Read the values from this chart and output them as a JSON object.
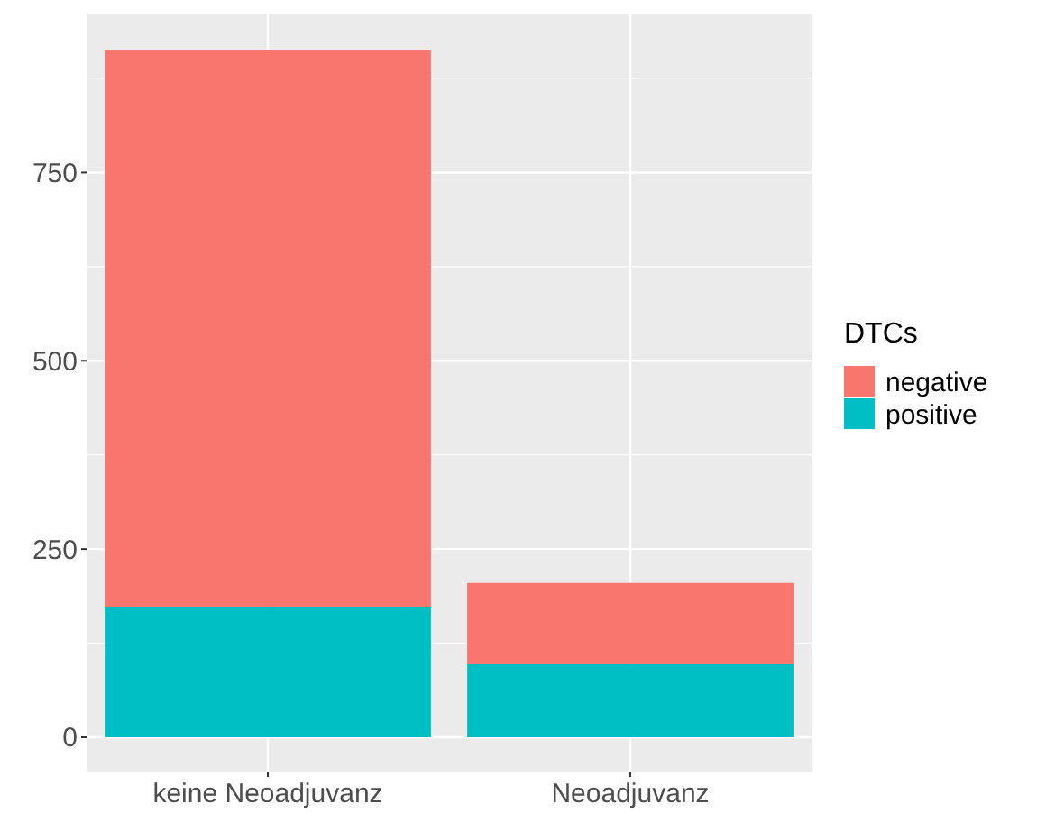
{
  "chart_data": {
    "type": "bar",
    "stacked": true,
    "categories": [
      "keine Neoadjuvanz",
      "Neoadjuvanz"
    ],
    "series": [
      {
        "name": "positive",
        "color": "#00bfc4",
        "values": [
          173,
          97
        ]
      },
      {
        "name": "negative",
        "color": "#f8766d",
        "values": [
          740,
          108
        ]
      }
    ],
    "legend_title": "DTCs",
    "legend": "right",
    "grid": true,
    "ylim": [
      -45.5,
      960
    ],
    "yticks": [
      0,
      {
        "value": 125,
        "label": null
      },
      250,
      {
        "value": 375,
        "label": null
      },
      500,
      {
        "value": 625,
        "label": null
      },
      750,
      {
        "value": 875,
        "label": null
      }
    ]
  }
}
